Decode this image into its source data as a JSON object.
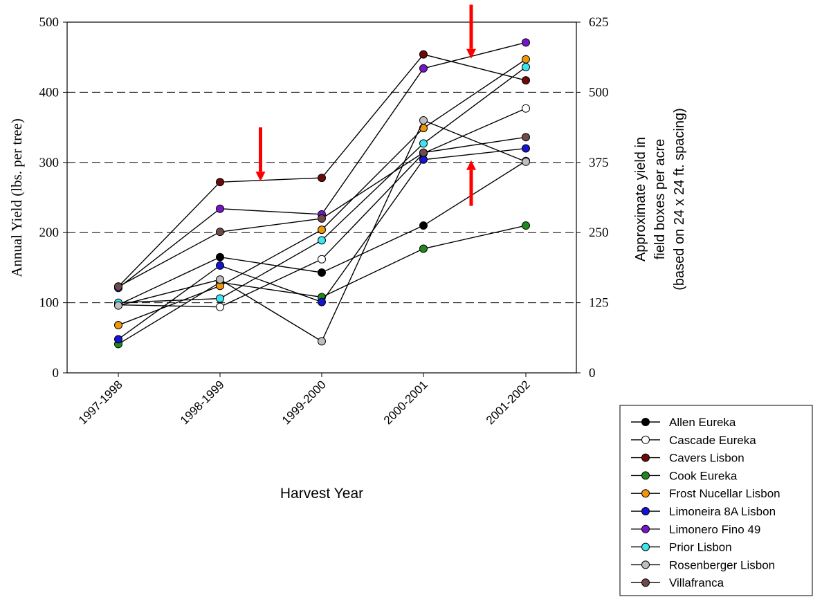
{
  "chart_data": {
    "type": "line",
    "xlabel": "Harvest Year",
    "ylabel": "Annual Yield (lbs. per tree)",
    "y2label": [
      "Approximate yield in",
      "field boxes per acre",
      "(based on 24 x 24 ft. spacing)"
    ],
    "categories": [
      "1997-1998",
      "1998-1999",
      "1999-2000",
      "2000-2001",
      "2001-2002"
    ],
    "ylim": [
      0,
      500
    ],
    "yticks": [
      0,
      100,
      200,
      300,
      400,
      500
    ],
    "y2lim": [
      0,
      625
    ],
    "y2ticks": [
      0,
      125,
      250,
      375,
      500,
      625
    ],
    "gridlines": "dashed horizontal at 100, 200, 300, 400",
    "legend_position": "bottom-right",
    "series": [
      {
        "name": "Allen Eureka",
        "color": "#000000",
        "values": [
          97,
          165,
          143,
          210,
          302
        ]
      },
      {
        "name": "Cascade Eureka",
        "color": "#ffffff",
        "values": [
          97,
          94,
          162,
          313,
          377
        ]
      },
      {
        "name": "Cavers Lisbon",
        "color": "#6b0a0a",
        "values": [
          123,
          272,
          278,
          454,
          417
        ]
      },
      {
        "name": "Cook Eureka",
        "color": "#1e8a1e",
        "values": [
          41,
          129,
          108,
          177,
          210
        ]
      },
      {
        "name": "Frost Nucellar Lisbon",
        "color": "#f0960a",
        "values": [
          68,
          124,
          204,
          349,
          447
        ]
      },
      {
        "name": "Limoneira 8A Lisbon",
        "color": "#1414d2",
        "values": [
          48,
          153,
          101,
          304,
          320
        ]
      },
      {
        "name": "Limonero Fino 49",
        "color": "#7814c8",
        "values": [
          121,
          234,
          226,
          434,
          471
        ]
      },
      {
        "name": "Prior Lisbon",
        "color": "#3ce6f0",
        "values": [
          100,
          106,
          189,
          327,
          436
        ]
      },
      {
        "name": "Rosenberger Lisbon",
        "color": "#bebebe",
        "values": [
          96,
          133,
          45,
          360,
          301
        ]
      },
      {
        "name": "Villafranca",
        "color": "#6e4a4a",
        "values": [
          123,
          201,
          220,
          314,
          336
        ]
      }
    ],
    "annotations": [
      {
        "type": "red-arrow-down",
        "x_between": [
          "1998-1999",
          "1999-2000"
        ],
        "from": 350,
        "to": 273
      },
      {
        "type": "red-arrow-down",
        "x_between": [
          "2000-2001",
          "2001-2002"
        ],
        "from": 525,
        "to": 448
      },
      {
        "type": "red-arrow-up",
        "x_between": [
          "2000-2001",
          "2001-2002"
        ],
        "from": 238,
        "to": 303
      }
    ]
  }
}
